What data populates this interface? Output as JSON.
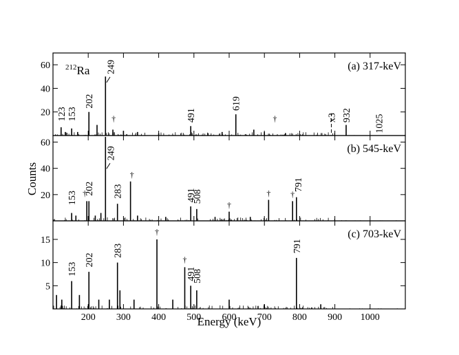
{
  "colors": {
    "frame": "#000000",
    "line": "#000000",
    "background": "#ffffff"
  },
  "xaxis": {
    "label": "Energy (keV)",
    "range": [
      100,
      1100
    ],
    "ticks": [
      200,
      300,
      400,
      500,
      600,
      700,
      800,
      900,
      1000
    ],
    "tick_labels": [
      "200",
      "300",
      "400",
      "500",
      "600",
      "700",
      "800",
      "900",
      "1000"
    ]
  },
  "ylabel": "Counts",
  "chart_data": [
    {
      "type": "line",
      "panel_label": "(a) 317-keV",
      "nucleus_mass": "212",
      "nucleus_symbol": "Ra",
      "ylim": [
        0,
        70
      ],
      "yticks": [
        20,
        40,
        60
      ],
      "ytick_labels": [
        "20",
        "40",
        "60"
      ],
      "peaks": [
        {
          "x": 123,
          "y": 7
        },
        {
          "x": 135,
          "y": 3
        },
        {
          "x": 153,
          "y": 6
        },
        {
          "x": 170,
          "y": 3
        },
        {
          "x": 202,
          "y": 20
        },
        {
          "x": 225,
          "y": 9
        },
        {
          "x": 249,
          "y": 50
        },
        {
          "x": 270,
          "y": 5
        },
        {
          "x": 300,
          "y": 4
        },
        {
          "x": 340,
          "y": 3
        },
        {
          "x": 400,
          "y": 2
        },
        {
          "x": 491,
          "y": 8
        },
        {
          "x": 540,
          "y": 2
        },
        {
          "x": 580,
          "y": 3
        },
        {
          "x": 619,
          "y": 18
        },
        {
          "x": 670,
          "y": 5
        },
        {
          "x": 700,
          "y": 3
        },
        {
          "x": 760,
          "y": 2
        },
        {
          "x": 932,
          "y": 9
        }
      ],
      "labels": [
        {
          "x": 123,
          "y": 12,
          "text": "123"
        },
        {
          "x": 153,
          "y": 12,
          "text": "153"
        },
        {
          "x": 202,
          "y": 23,
          "text": "202"
        },
        {
          "x": 263,
          "y": 52,
          "text": "249"
        },
        {
          "x": 491,
          "y": 11,
          "text": "491"
        },
        {
          "x": 619,
          "y": 21,
          "text": "619"
        },
        {
          "x": 890,
          "y": 11,
          "text": "x3"
        },
        {
          "x": 932,
          "y": 11,
          "text": "932"
        },
        {
          "x": 1025,
          "y": 2,
          "text": "1025"
        }
      ],
      "daggers": [
        {
          "x": 272,
          "y": 12
        },
        {
          "x": 730,
          "y": 12
        }
      ],
      "scale_marker_x": 890
    },
    {
      "type": "line",
      "panel_label": "(b) 545-keV",
      "ylim": [
        0,
        65
      ],
      "yticks": [
        20,
        40,
        60
      ],
      "ytick_labels": [
        "20",
        "40",
        "60"
      ],
      "peaks": [
        {
          "x": 153,
          "y": 6
        },
        {
          "x": 165,
          "y": 4
        },
        {
          "x": 196,
          "y": 15
        },
        {
          "x": 202,
          "y": 15
        },
        {
          "x": 220,
          "y": 4
        },
        {
          "x": 236,
          "y": 6
        },
        {
          "x": 249,
          "y": 64
        },
        {
          "x": 283,
          "y": 13
        },
        {
          "x": 320,
          "y": 30
        },
        {
          "x": 340,
          "y": 4
        },
        {
          "x": 420,
          "y": 3
        },
        {
          "x": 491,
          "y": 11
        },
        {
          "x": 508,
          "y": 9
        },
        {
          "x": 560,
          "y": 3
        },
        {
          "x": 600,
          "y": 7
        },
        {
          "x": 660,
          "y": 3
        },
        {
          "x": 712,
          "y": 16
        },
        {
          "x": 780,
          "y": 15
        },
        {
          "x": 791,
          "y": 18
        }
      ],
      "labels": [
        {
          "x": 153,
          "y": 12,
          "text": "153"
        },
        {
          "x": 202,
          "y": 19,
          "text": "202"
        },
        {
          "x": 263,
          "y": 46,
          "text": "249"
        },
        {
          "x": 283,
          "y": 17,
          "text": "283"
        },
        {
          "x": 491,
          "y": 14,
          "text": "491"
        },
        {
          "x": 508,
          "y": 13,
          "text": "508"
        },
        {
          "x": 795,
          "y": 22,
          "text": "791"
        }
      ],
      "daggers": [
        {
          "x": 190,
          "y": 19
        },
        {
          "x": 324,
          "y": 33
        },
        {
          "x": 600,
          "y": 10
        },
        {
          "x": 712,
          "y": 19
        },
        {
          "x": 780,
          "y": 18
        }
      ]
    },
    {
      "type": "line",
      "panel_label": "(c) 703-keV",
      "ylim": [
        0,
        19
      ],
      "yticks": [
        5,
        10,
        15
      ],
      "ytick_labels": [
        "5",
        "10",
        "15"
      ],
      "peaks": [
        {
          "x": 110,
          "y": 3
        },
        {
          "x": 125,
          "y": 2
        },
        {
          "x": 153,
          "y": 6
        },
        {
          "x": 175,
          "y": 3
        },
        {
          "x": 202,
          "y": 8
        },
        {
          "x": 230,
          "y": 2
        },
        {
          "x": 260,
          "y": 2
        },
        {
          "x": 283,
          "y": 10
        },
        {
          "x": 290,
          "y": 4
        },
        {
          "x": 330,
          "y": 2
        },
        {
          "x": 395,
          "y": 15
        },
        {
          "x": 440,
          "y": 2
        },
        {
          "x": 474,
          "y": 9
        },
        {
          "x": 491,
          "y": 5
        },
        {
          "x": 508,
          "y": 4
        },
        {
          "x": 600,
          "y": 2
        },
        {
          "x": 700,
          "y": 1
        },
        {
          "x": 791,
          "y": 11
        },
        {
          "x": 860,
          "y": 1
        }
      ],
      "labels": [
        {
          "x": 153,
          "y": 7,
          "text": "153"
        },
        {
          "x": 202,
          "y": 9,
          "text": "202"
        },
        {
          "x": 283,
          "y": 11,
          "text": "283"
        },
        {
          "x": 491,
          "y": 6,
          "text": "491"
        },
        {
          "x": 508,
          "y": 5.5,
          "text": "508"
        },
        {
          "x": 791,
          "y": 12,
          "text": "791"
        }
      ],
      "daggers": [
        {
          "x": 395,
          "y": 16
        },
        {
          "x": 474,
          "y": 10
        }
      ]
    }
  ]
}
